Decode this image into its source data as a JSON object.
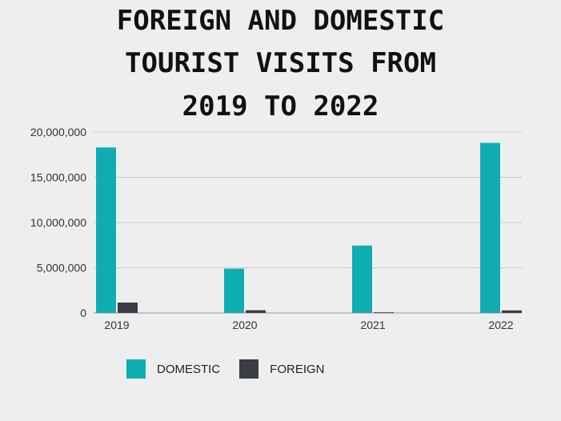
{
  "chart_data": {
    "type": "bar",
    "title": [
      "FOREIGN AND DOMESTIC",
      "TOURIST VISITS FROM",
      "2019 TO 2022"
    ],
    "categories": [
      "2019",
      "2020",
      "2021",
      "2022"
    ],
    "series": [
      {
        "name": "DOMESTIC",
        "color": "#0fadb2",
        "values": [
          18300000,
          4900000,
          7450000,
          18800000
        ]
      },
      {
        "name": "FOREIGN",
        "color": "#3a3d43",
        "values": [
          1150000,
          300000,
          70000,
          280000
        ]
      }
    ],
    "y_ticks": [
      0,
      5000000,
      10000000,
      15000000,
      20000000
    ],
    "y_tick_labels": [
      "0",
      "5,000,000",
      "10,000,000",
      "15,000,000",
      "20,000,000"
    ],
    "ylim": [
      0,
      20000000
    ],
    "grid": true,
    "legend_position": "bottom-left"
  }
}
